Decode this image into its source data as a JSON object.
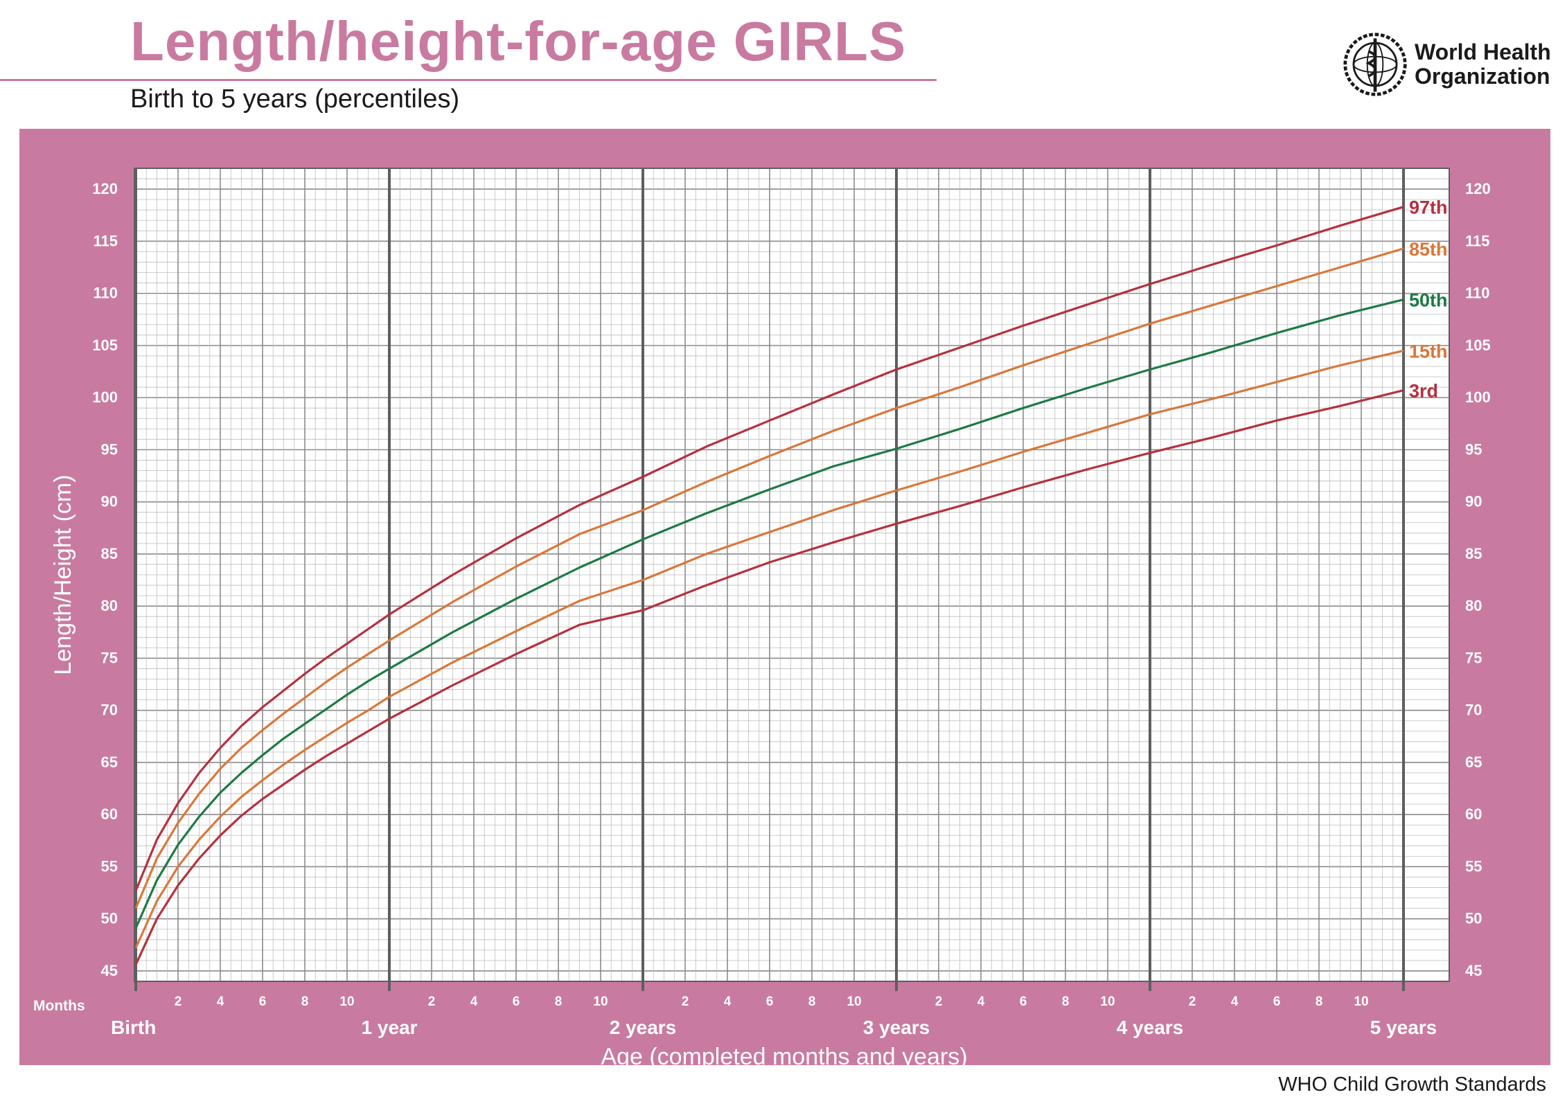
{
  "header": {
    "title": "Length/height-for-age GIRLS",
    "subtitle": "Birth to 5 years (percentiles)",
    "org_line1": "World Health",
    "org_line2": "Organization",
    "logo_icon": "who-emblem-icon"
  },
  "footer": {
    "text": "WHO Child Growth Standards"
  },
  "colors": {
    "brand_pink": "#c97aa0",
    "p3_p97": "#b5313e",
    "p15_p85": "#d9773a",
    "p50": "#1e7a45",
    "grid_minor": "#bdbdbd",
    "grid_major": "#5e5e5e"
  },
  "chart_data": {
    "type": "line",
    "title": "Length/height-for-age GIRLS",
    "subtitle": "Birth to 5 years (percentiles)",
    "xlabel": "Age (completed months and years)",
    "ylabel": "Length/Height (cm)",
    "xlim": [
      0,
      60
    ],
    "ylim": [
      44,
      122
    ],
    "grid": true,
    "legend_placement": "right-end labels",
    "y_ticks": [
      45,
      50,
      55,
      60,
      65,
      70,
      75,
      80,
      85,
      90,
      95,
      100,
      105,
      110,
      115,
      120
    ],
    "months_label": "Months",
    "month_tick_labels": [
      "2",
      "4",
      "6",
      "8",
      "10"
    ],
    "year_labels": [
      {
        "month": 0,
        "label": "Birth"
      },
      {
        "month": 12,
        "label": "1 year"
      },
      {
        "month": 24,
        "label": "2 years"
      },
      {
        "month": 36,
        "label": "3 years"
      },
      {
        "month": 48,
        "label": "4 years"
      },
      {
        "month": 60,
        "label": "5 years"
      }
    ],
    "x": [
      0,
      1,
      2,
      3,
      4,
      5,
      6,
      7,
      8,
      9,
      10,
      11,
      12,
      15,
      18,
      21,
      24,
      27,
      30,
      33,
      36,
      39,
      42,
      45,
      48,
      51,
      54,
      57,
      60
    ],
    "series": [
      {
        "name": "97th",
        "color": "#b5313e",
        "values": [
          52.7,
          57.6,
          61.1,
          64.0,
          66.4,
          68.5,
          70.3,
          71.9,
          73.5,
          75.0,
          76.4,
          77.8,
          79.2,
          83.0,
          86.5,
          89.7,
          92.4,
          95.3,
          97.8,
          100.3,
          102.7,
          104.8,
          106.9,
          108.9,
          110.9,
          112.8,
          114.6,
          116.5,
          118.3
        ]
      },
      {
        "name": "85th",
        "color": "#d9773a",
        "values": [
          51.0,
          55.8,
          59.2,
          62.0,
          64.4,
          66.4,
          68.1,
          69.7,
          71.2,
          72.7,
          74.1,
          75.4,
          76.7,
          80.4,
          83.8,
          86.9,
          89.2,
          91.9,
          94.4,
          96.8,
          99.0,
          101.0,
          103.1,
          105.1,
          107.1,
          108.9,
          110.7,
          112.5,
          114.3
        ]
      },
      {
        "name": "50th",
        "color": "#1e7a45",
        "values": [
          49.1,
          53.7,
          57.1,
          59.8,
          62.1,
          64.0,
          65.7,
          67.3,
          68.7,
          70.1,
          71.5,
          72.8,
          74.0,
          77.5,
          80.7,
          83.7,
          86.4,
          88.9,
          91.2,
          93.4,
          95.1,
          97.0,
          99.0,
          100.9,
          102.7,
          104.4,
          106.2,
          107.9,
          109.4
        ]
      },
      {
        "name": "15th",
        "color": "#d9773a",
        "values": [
          47.2,
          51.7,
          55.0,
          57.6,
          59.8,
          61.7,
          63.3,
          64.8,
          66.2,
          67.5,
          68.8,
          70.0,
          71.3,
          74.6,
          77.6,
          80.5,
          82.5,
          85.0,
          87.1,
          89.2,
          91.1,
          92.9,
          94.8,
          96.6,
          98.4,
          99.9,
          101.5,
          103.1,
          104.5
        ]
      },
      {
        "name": "3rd",
        "color": "#b5313e",
        "values": [
          45.6,
          50.0,
          53.2,
          55.8,
          58.0,
          59.9,
          61.5,
          62.9,
          64.3,
          65.6,
          66.8,
          68.0,
          69.2,
          72.4,
          75.4,
          78.2,
          79.6,
          82.0,
          84.2,
          86.1,
          87.9,
          89.6,
          91.4,
          93.1,
          94.7,
          96.2,
          97.8,
          99.2,
          100.7
        ]
      }
    ]
  }
}
